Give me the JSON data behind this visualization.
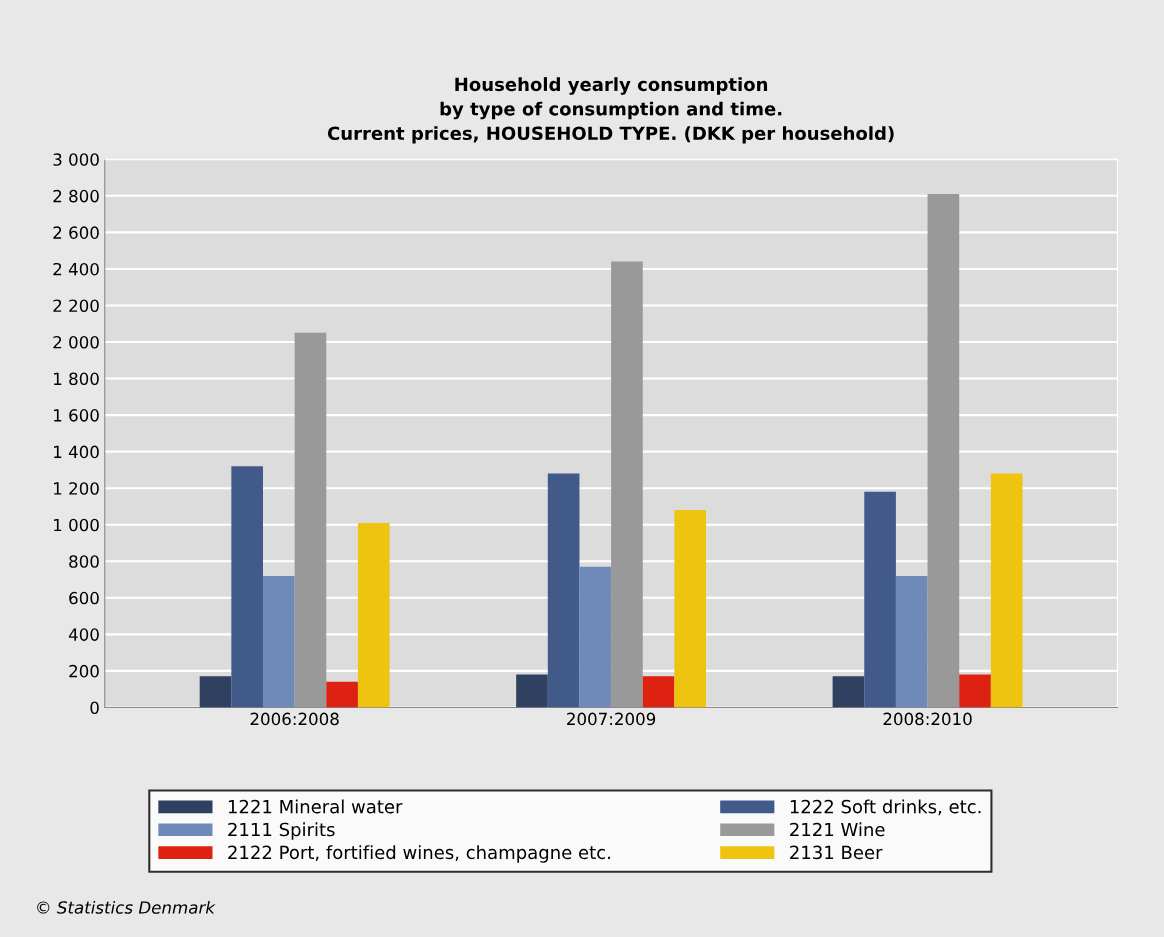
{
  "chart_data": {
    "type": "bar",
    "title": "Household yearly consumption\nby type of consumption and time.\nCurrent prices, HOUSEHOLD TYPE. (DKK per household)",
    "categories": [
      "2006:2008",
      "2007:2009",
      "2008:2010"
    ],
    "series": [
      {
        "name": "1221 Mineral water",
        "color": "#2f4060",
        "values": [
          170,
          180,
          170
        ]
      },
      {
        "name": "1222 Soft drinks, etc.",
        "color": "#415a8a",
        "values": [
          1320,
          1280,
          1180
        ]
      },
      {
        "name": "2111 Spirits",
        "color": "#6f8ab8",
        "values": [
          720,
          770,
          720
        ]
      },
      {
        "name": "2121 Wine",
        "color": "#999999",
        "values": [
          2050,
          2440,
          2810
        ]
      },
      {
        "name": "2122 Port, fortified wines, champagne etc.",
        "color": "#dd2211",
        "values": [
          140,
          170,
          180
        ]
      },
      {
        "name": "2131 Beer",
        "color": "#eec411",
        "values": [
          1010,
          1080,
          1280
        ]
      }
    ],
    "ylim": [
      0,
      3000
    ],
    "yticks": [
      0,
      200,
      400,
      600,
      800,
      {
        "value": 1000,
        "label": "1 000"
      },
      {
        "value": 1200,
        "label": "1 200"
      },
      {
        "value": 1400,
        "label": "1 400"
      },
      {
        "value": 1600,
        "label": "1 600"
      },
      {
        "value": 1800,
        "label": "1 800"
      },
      {
        "value": 2000,
        "label": "2 000"
      },
      {
        "value": 2200,
        "label": "2 200"
      },
      {
        "value": 2400,
        "label": "2 400"
      },
      {
        "value": 2600,
        "label": "2 600"
      },
      {
        "value": 2800,
        "label": "2 800"
      },
      {
        "value": 3000,
        "label": "3 000"
      }
    ],
    "grid": "y",
    "legend": "bottom",
    "annotations": [
      "© Statistics Denmark"
    ]
  }
}
